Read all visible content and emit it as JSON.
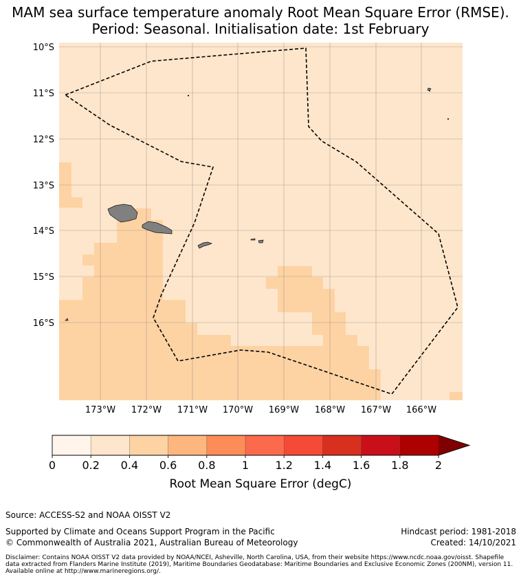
{
  "title": {
    "line1": "MAM sea surface temperature anomaly Root Mean Square Error (RMSE).",
    "line2": "Period: Seasonal. Initialisation date: 1st February"
  },
  "map": {
    "lat_labels": [
      "10°S",
      "11°S",
      "12°S",
      "13°S",
      "14°S",
      "15°S",
      "16°S"
    ],
    "lon_labels": [
      "173°W",
      "172°W",
      "171°W",
      "170°W",
      "169°W",
      "168°W",
      "167°W",
      "166°W"
    ],
    "field_levels": {
      "background": "0.2-0.4",
      "shaded": "0.4-0.6"
    },
    "land_color": "#808080",
    "eez_line": "dashed"
  },
  "colorbar": {
    "ticks": [
      "0",
      "0.2",
      "0.4",
      "0.6",
      "0.8",
      "1",
      "1.2",
      "1.4",
      "1.6",
      "1.8",
      "2"
    ],
    "colors": [
      "#fff5eb",
      "#fee6cc",
      "#fdd3a4",
      "#fdb67e",
      "#fc8d59",
      "#fc6a4e",
      "#f44a37",
      "#d7301f",
      "#c9101a",
      "#ad0000",
      "#7f0000"
    ],
    "label": "Root Mean Square Error (degC)",
    "extend": "max"
  },
  "footer": {
    "source": "Source: ACCESS-S2 and NOAA OISST V2",
    "supported": "Supported by Climate and Oceans Support Program in the Pacific",
    "copyright": "© Commonwealth of Australia 2021, Australian Bureau of Meteorology",
    "hindcast": "Hindcast period: 1981-2018",
    "created": "Created: 14/10/2021",
    "disclaimer": "Disclaimer: Contains NOAA OISST V2 data provided by NOAA/NCEI, Asheville, North Carolina, USA, from their website https://www.ncdc.noaa.gov/oisst. Shapefile data extracted from Flanders Marine Institute (2019), Maritime Boundaries Geodatabase: Maritime Boundaries and Exclusive Economic Zones (200NM), version 11. Available online at http://www.marineregions.org/."
  }
}
